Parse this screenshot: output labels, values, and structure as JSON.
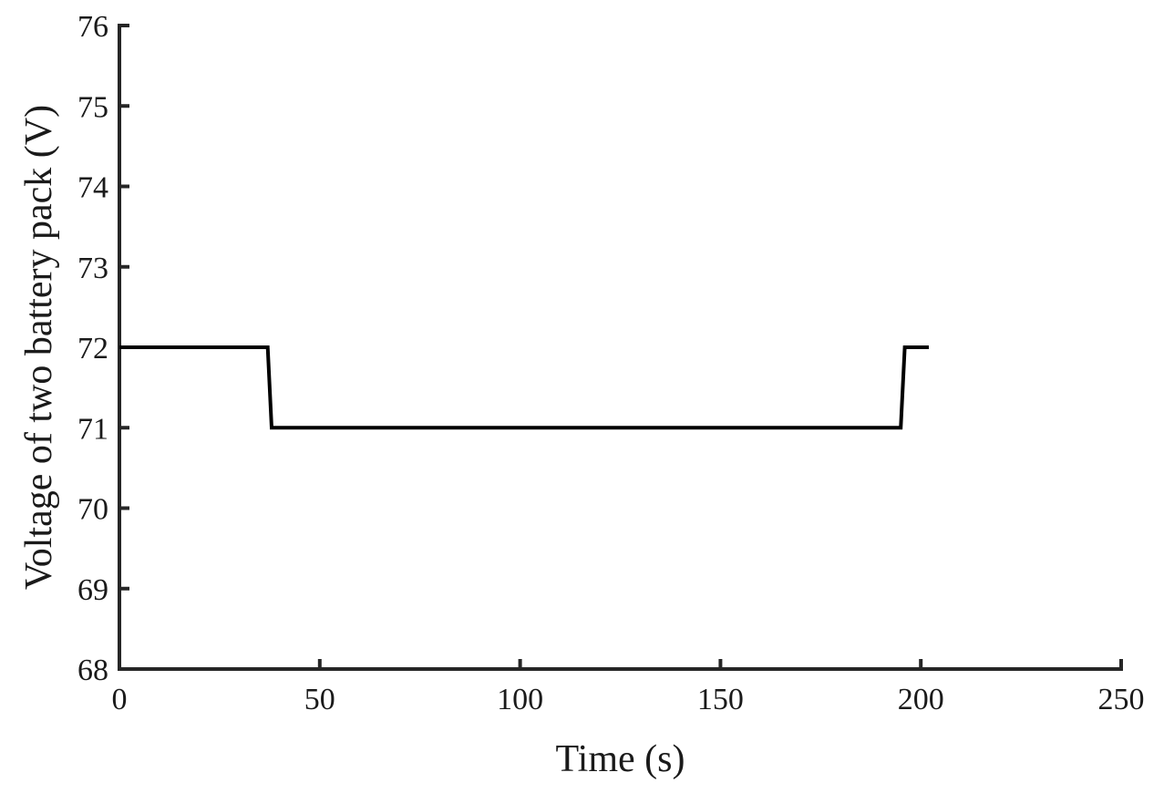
{
  "chart_data": {
    "type": "line",
    "title": "",
    "xlabel": "Time (s)",
    "ylabel": "Voltage of two battery pack (V)",
    "xlim": [
      0,
      250
    ],
    "ylim": [
      68,
      76
    ],
    "xticks": [
      0,
      50,
      100,
      150,
      200,
      250
    ],
    "yticks": [
      68,
      69,
      70,
      71,
      72,
      73,
      74,
      75,
      76
    ],
    "grid": false,
    "legend": "none",
    "line_color": "#000000",
    "series": [
      {
        "x": [
          0,
          37,
          38,
          195,
          196,
          202
        ],
        "y": [
          72,
          72,
          71,
          71,
          72,
          72
        ]
      }
    ]
  }
}
